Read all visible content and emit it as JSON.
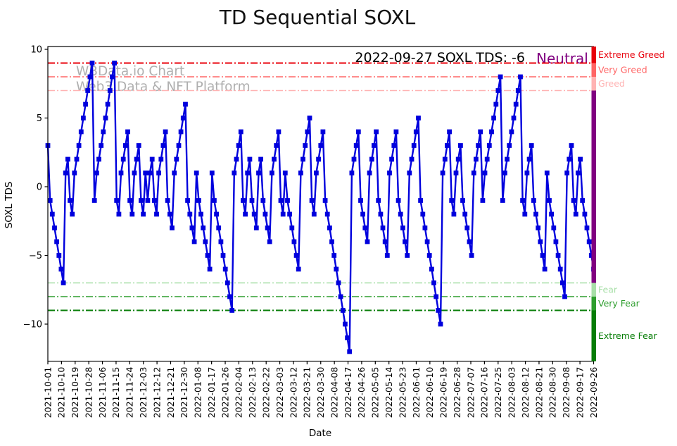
{
  "title": "TD Sequential SOXL",
  "watermark": {
    "line1": "WBData.io Chart",
    "line2": "Web3 Data & NFT Platform"
  },
  "annotation": {
    "date_text": "2022-09-27 SOXL TDS: -6",
    "sentiment": "Neutral",
    "sentiment_color": "#800080"
  },
  "chart_data": {
    "type": "line",
    "title": "TD Sequential SOXL",
    "xlabel": "Date",
    "ylabel": "SOXL TDS",
    "line_color": "#0000dd",
    "marker": "square",
    "grid": false,
    "ylim": [
      -12.7,
      10.2
    ],
    "yticks": [
      10,
      5,
      0,
      -5,
      -10
    ],
    "x_tick_labels": [
      "2021-10-01",
      "2021-10-10",
      "2021-10-19",
      "2021-10-28",
      "2021-11-06",
      "2021-11-15",
      "2021-11-24",
      "2021-12-03",
      "2021-12-12",
      "2021-12-21",
      "2021-12-30",
      "2022-01-08",
      "2022-01-17",
      "2022-01-26",
      "2022-02-04",
      "2022-02-13",
      "2022-02-22",
      "2022-03-03",
      "2022-03-12",
      "2022-03-21",
      "2022-03-30",
      "2022-04-08",
      "2022-04-17",
      "2022-04-26",
      "2022-05-05",
      "2022-05-14",
      "2022-05-23",
      "2022-06-01",
      "2022-06-10",
      "2022-06-19",
      "2022-06-28",
      "2022-07-07",
      "2022-07-16",
      "2022-07-25",
      "2022-08-03",
      "2022-08-12",
      "2022-08-21",
      "2022-08-30",
      "2022-09-08",
      "2022-09-17",
      "2022-09-26"
    ],
    "values": [
      3,
      -1,
      -2,
      -3,
      -4,
      -5,
      -6,
      -7,
      1,
      2,
      -1,
      -2,
      1,
      2,
      3,
      4,
      5,
      6,
      7,
      8,
      9,
      -1,
      1,
      2,
      3,
      4,
      5,
      6,
      7,
      8,
      9,
      -1,
      -2,
      1,
      2,
      3,
      4,
      -1,
      -2,
      1,
      2,
      3,
      -1,
      -2,
      1,
      -1,
      1,
      2,
      -1,
      -2,
      1,
      2,
      3,
      4,
      -1,
      -2,
      -3,
      1,
      2,
      3,
      4,
      5,
      6,
      -1,
      -2,
      -3,
      -4,
      1,
      -1,
      -2,
      -3,
      -4,
      -5,
      -6,
      1,
      -1,
      -2,
      -3,
      -4,
      -5,
      -6,
      -7,
      -8,
      -9,
      1,
      2,
      3,
      4,
      -1,
      -2,
      1,
      2,
      -1,
      -2,
      -3,
      1,
      2,
      -1,
      -2,
      -3,
      -4,
      1,
      2,
      3,
      4,
      -1,
      -2,
      1,
      -1,
      -2,
      -3,
      -4,
      -5,
      -6,
      1,
      2,
      3,
      4,
      5,
      -1,
      -2,
      1,
      2,
      3,
      4,
      -1,
      -2,
      -3,
      -4,
      -5,
      -6,
      -7,
      -8,
      -9,
      -10,
      -11,
      -12,
      1,
      2,
      3,
      4,
      -1,
      -2,
      -3,
      -4,
      1,
      2,
      3,
      4,
      -1,
      -2,
      -3,
      -4,
      -5,
      1,
      2,
      3,
      4,
      -1,
      -2,
      -3,
      -4,
      -5,
      1,
      2,
      3,
      4,
      5,
      -1,
      -2,
      -3,
      -4,
      -5,
      -6,
      -7,
      -8,
      -9,
      -10,
      1,
      2,
      3,
      4,
      -1,
      -2,
      1,
      2,
      3,
      -1,
      -2,
      -3,
      -4,
      -5,
      1,
      2,
      3,
      4,
      -1,
      1,
      2,
      3,
      4,
      5,
      6,
      7,
      8,
      -1,
      1,
      2,
      3,
      4,
      5,
      6,
      7,
      8,
      -1,
      -2,
      1,
      2,
      3,
      -1,
      -2,
      -3,
      -4,
      -5,
      -6,
      1,
      -1,
      -2,
      -3,
      -4,
      -5,
      -6,
      -7,
      -8,
      1,
      2,
      3,
      -1,
      -2,
      1,
      2,
      -1,
      -2,
      -3,
      -4,
      -5,
      -6
    ],
    "thresholds": [
      {
        "value": 9,
        "color": "#e8000b",
        "width": 2.0
      },
      {
        "value": 8,
        "color": "#ff6666",
        "width": 1.6
      },
      {
        "value": 7,
        "color": "#ffb3b3",
        "width": 1.4
      },
      {
        "value": -7,
        "color": "#a8dfa8",
        "width": 1.4
      },
      {
        "value": -8,
        "color": "#2e9e2e",
        "width": 1.6
      },
      {
        "value": -9,
        "color": "#067d06",
        "width": 2.0
      }
    ],
    "zones": [
      {
        "label": "Extreme Greed",
        "color": "#e8000b",
        "band": [
          9,
          10.2
        ]
      },
      {
        "label": "Very Greed",
        "color": "#ff6666",
        "band": [
          8,
          9
        ]
      },
      {
        "label": "Greed",
        "color": "#ffb3b3",
        "band": [
          7,
          8
        ]
      },
      {
        "label": "",
        "color": "#800080",
        "band": [
          -7,
          7
        ]
      },
      {
        "label": "Fear",
        "color": "#a8dfa8",
        "band": [
          -8,
          -7
        ]
      },
      {
        "label": "Very Fear",
        "color": "#2e9e2e",
        "band": [
          -9,
          -8
        ]
      },
      {
        "label": "Extreme Fear",
        "color": "#067d06",
        "band": [
          -12.7,
          -9
        ]
      }
    ],
    "legend": null
  }
}
